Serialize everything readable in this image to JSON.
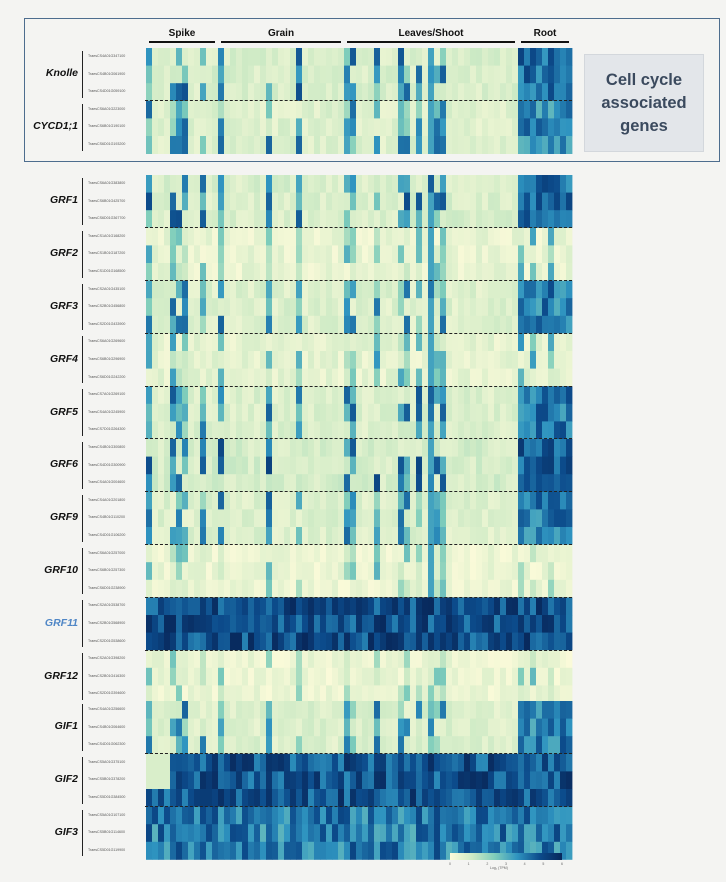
{
  "chart_data": {
    "type": "heatmap",
    "title": "",
    "xlabel": "",
    "ylabel": "",
    "tissue_groups": [
      "Spike",
      "Grain",
      "Leaves/Shoot",
      "Root"
    ],
    "n_samples": 71,
    "tissue_sample_counts": [
      12,
      21,
      29,
      9
    ],
    "colorscale": [
      "#fdfbda",
      "#cdeac5",
      "#7fcdbb",
      "#2f94c0",
      "#0c4b8b",
      "#08285b"
    ],
    "legend_title": "Log₂ (TPM)",
    "legend_ticks": [
      "0",
      "1",
      "2",
      "3",
      "4",
      "5",
      "6"
    ],
    "panels": [
      {
        "name": "cell-cycle",
        "genes": [
          {
            "gene": "Knolle",
            "highlight": false,
            "transcripts": [
              "TraesCS4A01G347100",
              "TraesCS4B01G061900",
              "TraesCS4D01G059100"
            ],
            "level": 0.35
          },
          {
            "gene": "CYCD1;1",
            "highlight": false,
            "transcripts": [
              "TraesCS6A01G223000",
              "TraesCS6B01G190100",
              "TraesCS6D01G193200"
            ],
            "level": 0.28
          }
        ]
      },
      {
        "name": "grf",
        "genes": [
          {
            "gene": "GRF1",
            "highlight": false,
            "transcripts": [
              "TraesCS6A01G383800",
              "TraesCS6B01G425700",
              "TraesCS6D01G367700"
            ],
            "level": 0.35
          },
          {
            "gene": "GRF2",
            "highlight": false,
            "transcripts": [
              "TraesCS1A01G168200",
              "TraesCS1B01G187200",
              "TraesCS1D01G168500"
            ],
            "level": 0.1
          },
          {
            "gene": "GRF3",
            "highlight": false,
            "transcripts": [
              "TraesCS2A01G435100",
              "TraesCS2B01G456800",
              "TraesCS2D01G433900"
            ],
            "level": 0.3
          },
          {
            "gene": "GRF4",
            "highlight": false,
            "transcripts": [
              "TraesCS6A01G269600",
              "TraesCS6B01G296900",
              "TraesCS6D01G242200"
            ],
            "level": 0.15
          },
          {
            "gene": "GRF5",
            "highlight": false,
            "transcripts": [
              "TraesCS7A01G269100",
              "TraesCS4A01G245900",
              "TraesCS7D01G264300"
            ],
            "level": 0.32
          },
          {
            "gene": "GRF6",
            "highlight": false,
            "transcripts": [
              "TraesCS4B01G300800",
              "TraesCS4D01G300900",
              "TraesCS4A01G004600"
            ],
            "level": 0.42
          },
          {
            "gene": "GRF9",
            "highlight": false,
            "transcripts": [
              "TraesCS4A01G201800",
              "TraesCS4B01G110200",
              "TraesCS4D01G106200"
            ],
            "level": 0.3
          },
          {
            "gene": "GRF10",
            "highlight": false,
            "transcripts": [
              "TraesCS6A01G257000",
              "TraesCS6B01G257300",
              "TraesCS6D01G238900"
            ],
            "level": 0.05
          },
          {
            "gene": "GRF11",
            "highlight": true,
            "transcripts": [
              "TraesCS2A01G538700",
              "TraesCS2B01G568900",
              "TraesCS2D01G538600"
            ],
            "level": 0.82
          },
          {
            "gene": "GRF12",
            "highlight": false,
            "transcripts": [
              "TraesCS2A01G398200",
              "TraesCS2B01G416300",
              "TraesCS2D01G394600"
            ],
            "level": 0.05
          }
        ]
      },
      {
        "name": "gif",
        "genes": [
          {
            "gene": "GIF1",
            "highlight": false,
            "transcripts": [
              "TraesCS4A01G256600",
              "TraesCS4B01G064600",
              "TraesCS4D01G062300"
            ],
            "level": 0.3
          },
          {
            "gene": "GIF2",
            "highlight": false,
            "transcripts": [
              "TraesCS5A01G375100",
              "TraesCS5B01G378200",
              "TraesCS5D01G384500"
            ],
            "level": 0.8
          },
          {
            "gene": "GIF3",
            "highlight": false,
            "transcripts": [
              "TraesCS5A01G107100",
              "TraesCS5B01G114600",
              "TraesCS5D01G119900"
            ],
            "level": 0.66
          }
        ]
      }
    ]
  },
  "callout": {
    "text": "Cell cycle\nassociated\ngenes"
  }
}
